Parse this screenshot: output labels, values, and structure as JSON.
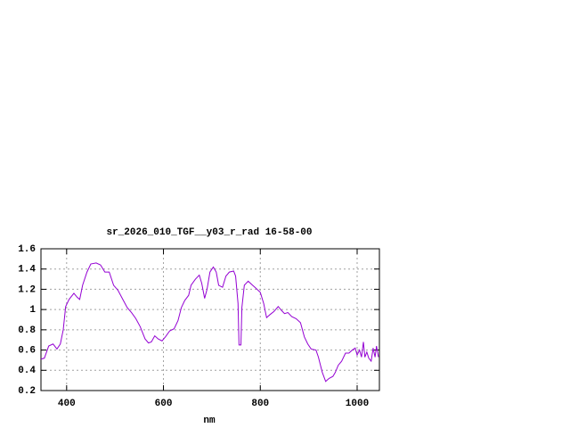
{
  "chart_data": {
    "type": "line",
    "title": "sr_2026_010_TGF__y03_r_rad 16-58-00",
    "xlabel": "nm",
    "x": [
      347,
      354,
      363,
      372,
      380,
      387,
      393,
      398,
      405,
      415,
      422,
      427,
      433,
      442,
      450,
      461,
      470,
      479,
      488,
      497,
      506,
      516,
      525,
      534,
      543,
      552,
      562,
      569,
      575,
      582,
      589,
      597,
      604,
      613,
      622,
      630,
      637,
      644,
      652,
      657,
      666,
      674,
      679,
      685,
      690,
      696,
      703,
      709,
      714,
      722,
      729,
      736,
      745,
      749,
      754,
      756,
      760,
      762,
      767,
      775,
      784,
      791,
      800,
      807,
      813,
      820,
      828,
      837,
      844,
      850,
      857,
      865,
      874,
      883,
      891,
      898,
      905,
      915,
      920,
      928,
      935,
      942,
      950,
      955,
      961,
      968,
      976,
      983,
      990,
      996,
      1000,
      1005,
      1009,
      1013,
      1016,
      1020,
      1024,
      1029,
      1033,
      1037,
      1040,
      1044
    ],
    "series": [
      {
        "color": "#9400d3",
        "values": [
          0.51,
          0.52,
          0.64,
          0.66,
          0.61,
          0.66,
          0.8,
          1.03,
          1.1,
          1.16,
          1.12,
          1.1,
          1.24,
          1.37,
          1.45,
          1.46,
          1.44,
          1.37,
          1.37,
          1.24,
          1.19,
          1.1,
          1.02,
          0.97,
          0.91,
          0.83,
          0.71,
          0.67,
          0.68,
          0.74,
          0.71,
          0.69,
          0.73,
          0.79,
          0.81,
          0.89,
          1.02,
          1.09,
          1.14,
          1.24,
          1.3,
          1.34,
          1.26,
          1.11,
          1.2,
          1.37,
          1.42,
          1.37,
          1.24,
          1.22,
          1.33,
          1.37,
          1.38,
          1.33,
          1.06,
          0.65,
          0.65,
          1.02,
          1.24,
          1.28,
          1.24,
          1.21,
          1.17,
          1.06,
          0.92,
          0.95,
          0.98,
          1.03,
          0.99,
          0.96,
          0.97,
          0.93,
          0.91,
          0.87,
          0.73,
          0.66,
          0.61,
          0.6,
          0.53,
          0.38,
          0.29,
          0.32,
          0.34,
          0.38,
          0.45,
          0.49,
          0.57,
          0.57,
          0.6,
          0.62,
          0.55,
          0.6,
          0.53,
          0.68,
          0.53,
          0.58,
          0.52,
          0.49,
          0.62,
          0.53,
          0.64,
          0.53
        ]
      }
    ],
    "xlim": [
      347,
      1046
    ],
    "xticks": [
      400,
      600,
      800,
      1000
    ],
    "ylim": [
      0.2,
      1.6
    ],
    "yticks": [
      0.2,
      0.4,
      0.6,
      0.8,
      1,
      1.2,
      1.4,
      1.6
    ],
    "grid": true
  }
}
